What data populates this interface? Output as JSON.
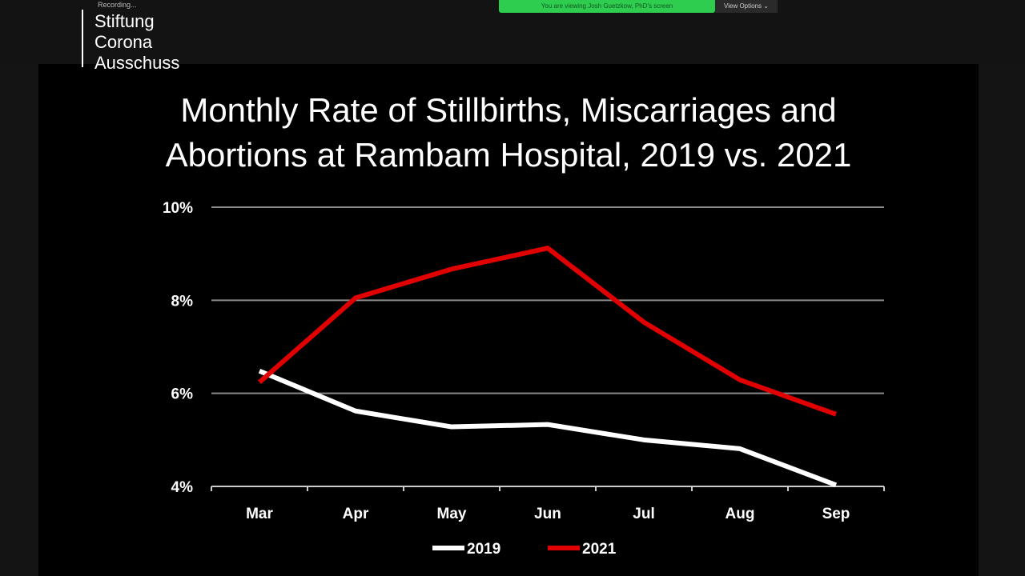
{
  "logo": {
    "text": [
      "Stiftung",
      "Corona",
      "Ausschuss"
    ]
  },
  "recording": "Recording...",
  "banner": {
    "text": "You are viewing Josh Guetzkow, PhD's screen",
    "view_options": "View Options ⌄"
  },
  "chart_data": {
    "type": "line",
    "title": "Monthly Rate of Stillbirths, Miscarriages and Abortions at Rambam Hospital, 2019 vs. 2021",
    "title_lines": [
      "Monthly Rate of Stillbirths, Miscarriages and",
      "Abortions at Rambam Hospital, 2019 vs. 2021"
    ],
    "categories": [
      "Mar",
      "Apr",
      "May",
      "Jun",
      "Jul",
      "Aug",
      "Sep"
    ],
    "yticks": [
      "4%",
      "6%",
      "8%",
      "10%"
    ],
    "ylim": [
      4,
      10
    ],
    "grid": true,
    "legend": "bottom",
    "series": [
      {
        "name": "2019",
        "color": "#ffffff",
        "values": [
          6.48,
          5.62,
          5.28,
          5.33,
          5.0,
          4.81,
          4.03
        ]
      },
      {
        "name": "2021",
        "color": "#e00000",
        "values": [
          6.24,
          8.05,
          8.67,
          9.12,
          7.53,
          6.29,
          5.55
        ]
      }
    ]
  }
}
